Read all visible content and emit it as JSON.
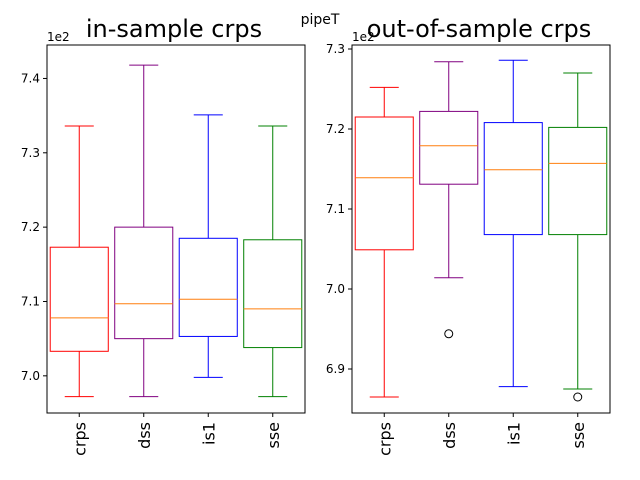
{
  "figure": {
    "suptitle": "pipeT"
  },
  "chart_data": [
    {
      "type": "box",
      "title": "in-sample crps",
      "offset_label": "1e2",
      "categories": [
        "crps",
        "dss",
        "is1",
        "sse"
      ],
      "colors": [
        "#ff0000",
        "#800080",
        "#0000ff",
        "#008000"
      ],
      "median_color": "#ff7f0e",
      "ylim": [
        6.95,
        7.445
      ],
      "yticks": [
        7.0,
        7.1,
        7.2,
        7.3,
        7.4
      ],
      "ytick_labels": [
        "7.0",
        "7.1",
        "7.2",
        "7.3",
        "7.4"
      ],
      "boxes": [
        {
          "whislo": 6.972,
          "q1": 7.033,
          "med": 7.078,
          "q3": 7.173,
          "whishi": 7.336,
          "fliers": []
        },
        {
          "whislo": 6.972,
          "q1": 7.05,
          "med": 7.097,
          "q3": 7.2,
          "whishi": 7.418,
          "fliers": []
        },
        {
          "whislo": 6.998,
          "q1": 7.053,
          "med": 7.103,
          "q3": 7.185,
          "whishi": 7.351,
          "fliers": []
        },
        {
          "whislo": 6.972,
          "q1": 7.038,
          "med": 7.09,
          "q3": 7.183,
          "whishi": 7.336,
          "fliers": []
        }
      ]
    },
    {
      "type": "box",
      "title": "out-of-sample crps",
      "offset_label": "1e2",
      "categories": [
        "crps",
        "dss",
        "is1",
        "sse"
      ],
      "colors": [
        "#ff0000",
        "#800080",
        "#0000ff",
        "#008000"
      ],
      "median_color": "#ff7f0e",
      "ylim": [
        6.845,
        7.305
      ],
      "yticks": [
        6.9,
        7.0,
        7.1,
        7.2,
        7.3
      ],
      "ytick_labels": [
        "6.9",
        "7.0",
        "7.1",
        "7.2",
        "7.3"
      ],
      "boxes": [
        {
          "whislo": 6.865,
          "q1": 7.049,
          "med": 7.139,
          "q3": 7.215,
          "whishi": 7.252,
          "fliers": []
        },
        {
          "whislo": 7.014,
          "q1": 7.131,
          "med": 7.179,
          "q3": 7.222,
          "whishi": 7.284,
          "fliers": [
            6.944
          ]
        },
        {
          "whislo": 6.878,
          "q1": 7.068,
          "med": 7.149,
          "q3": 7.208,
          "whishi": 7.286,
          "fliers": []
        },
        {
          "whislo": 6.875,
          "q1": 7.068,
          "med": 7.157,
          "q3": 7.202,
          "whishi": 7.27,
          "fliers": [
            6.865
          ]
        }
      ]
    }
  ]
}
